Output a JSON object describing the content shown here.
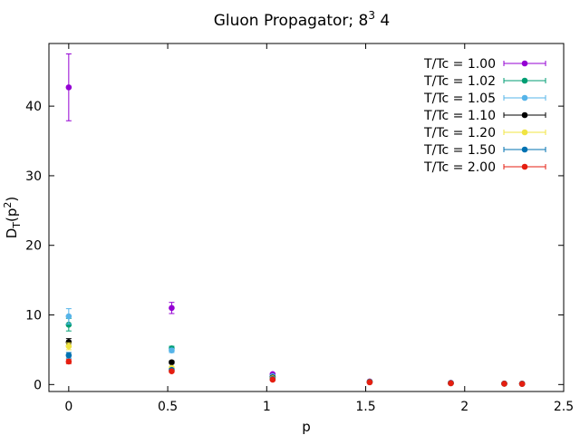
{
  "chart_data": {
    "type": "scatter",
    "title_main": "Gluon Propagator; 8",
    "title_sup": "3",
    "title_rest": " 4",
    "xlabel": "p",
    "ylabel_main": "D",
    "ylabel_sub": "T",
    "ylabel_paren_open": "(p",
    "ylabel_sup": "2",
    "ylabel_paren_close": ")",
    "xlim": [
      -0.1,
      2.5
    ],
    "ylim": [
      -1,
      49
    ],
    "x_ticks": [
      0,
      0.5,
      1,
      1.5,
      2,
      2.5
    ],
    "x_tick_labels": [
      "0",
      "0.5",
      "1",
      "1.5",
      "2",
      "2.5"
    ],
    "y_ticks": [
      0,
      10,
      20,
      30,
      40
    ],
    "y_tick_labels": [
      "0",
      "10",
      "20",
      "30",
      "40"
    ],
    "grid": false,
    "legend_position": "top-right",
    "series": [
      {
        "name": "T/Tc = 1.00",
        "color": "#9400d3",
        "points": [
          {
            "x": 0,
            "y": 42.7,
            "err": 4.8
          },
          {
            "x": 0.52,
            "y": 11.0,
            "err": 0.8
          },
          {
            "x": 1.03,
            "y": 1.5,
            "err": 0.1
          },
          {
            "x": 1.52,
            "y": 0.45,
            "err": 0.05
          },
          {
            "x": 1.93,
            "y": 0.25,
            "err": 0.03
          },
          {
            "x": 2.2,
            "y": 0.15,
            "err": 0.02
          },
          {
            "x": 2.29,
            "y": 0.13,
            "err": 0.02
          }
        ]
      },
      {
        "name": "T/Tc = 1.02",
        "color": "#009e73",
        "points": [
          {
            "x": 0,
            "y": 8.6,
            "err": 0.9
          },
          {
            "x": 0.52,
            "y": 5.2,
            "err": 0.3
          },
          {
            "x": 1.03,
            "y": 1.2,
            "err": 0.1
          },
          {
            "x": 1.52,
            "y": 0.4,
            "err": 0.04
          },
          {
            "x": 1.93,
            "y": 0.22,
            "err": 0.03
          },
          {
            "x": 2.2,
            "y": 0.14,
            "err": 0.02
          },
          {
            "x": 2.29,
            "y": 0.12,
            "err": 0.02
          }
        ]
      },
      {
        "name": "T/Tc = 1.05",
        "color": "#56b4e9",
        "points": [
          {
            "x": 0,
            "y": 9.8,
            "err": 1.1
          },
          {
            "x": 0.52,
            "y": 4.9,
            "err": 0.3
          },
          {
            "x": 1.03,
            "y": 1.2,
            "err": 0.1
          },
          {
            "x": 1.52,
            "y": 0.4,
            "err": 0.04
          },
          {
            "x": 1.93,
            "y": 0.22,
            "err": 0.03
          },
          {
            "x": 2.2,
            "y": 0.14,
            "err": 0.02
          },
          {
            "x": 2.29,
            "y": 0.12,
            "err": 0.02
          }
        ]
      },
      {
        "name": "T/Tc = 1.10",
        "color": "#000000",
        "points": [
          {
            "x": 0,
            "y": 6.1,
            "err": 0.5
          },
          {
            "x": 0.52,
            "y": 3.2,
            "err": 0.2
          },
          {
            "x": 1.03,
            "y": 1.0,
            "err": 0.1
          },
          {
            "x": 1.52,
            "y": 0.38,
            "err": 0.04
          },
          {
            "x": 1.93,
            "y": 0.21,
            "err": 0.03
          },
          {
            "x": 2.2,
            "y": 0.13,
            "err": 0.02
          },
          {
            "x": 2.29,
            "y": 0.11,
            "err": 0.02
          }
        ]
      },
      {
        "name": "T/Tc = 1.20",
        "color": "#f0e442",
        "points": [
          {
            "x": 0,
            "y": 5.5,
            "err": 0.5
          },
          {
            "x": 0.52,
            "y": 2.4,
            "err": 0.2
          },
          {
            "x": 1.03,
            "y": 0.9,
            "err": 0.1
          },
          {
            "x": 1.52,
            "y": 0.36,
            "err": 0.04
          },
          {
            "x": 1.93,
            "y": 0.2,
            "err": 0.03
          },
          {
            "x": 2.2,
            "y": 0.12,
            "err": 0.02
          },
          {
            "x": 2.29,
            "y": 0.1,
            "err": 0.02
          }
        ]
      },
      {
        "name": "T/Tc = 1.50",
        "color": "#0072b2",
        "points": [
          {
            "x": 0,
            "y": 4.2,
            "err": 0.4
          },
          {
            "x": 0.52,
            "y": 2.1,
            "err": 0.2
          },
          {
            "x": 1.03,
            "y": 0.8,
            "err": 0.1
          },
          {
            "x": 1.52,
            "y": 0.34,
            "err": 0.04
          },
          {
            "x": 1.93,
            "y": 0.19,
            "err": 0.03
          },
          {
            "x": 2.2,
            "y": 0.12,
            "err": 0.02
          },
          {
            "x": 2.29,
            "y": 0.1,
            "err": 0.02
          }
        ]
      },
      {
        "name": "T/Tc = 2.00",
        "color": "#e51e10",
        "points": [
          {
            "x": 0,
            "y": 3.3,
            "err": 0.3
          },
          {
            "x": 0.52,
            "y": 1.9,
            "err": 0.15
          },
          {
            "x": 1.03,
            "y": 0.7,
            "err": 0.07
          },
          {
            "x": 1.52,
            "y": 0.32,
            "err": 0.04
          },
          {
            "x": 1.93,
            "y": 0.18,
            "err": 0.03
          },
          {
            "x": 2.2,
            "y": 0.11,
            "err": 0.02
          },
          {
            "x": 2.29,
            "y": 0.09,
            "err": 0.02
          }
        ]
      }
    ]
  }
}
